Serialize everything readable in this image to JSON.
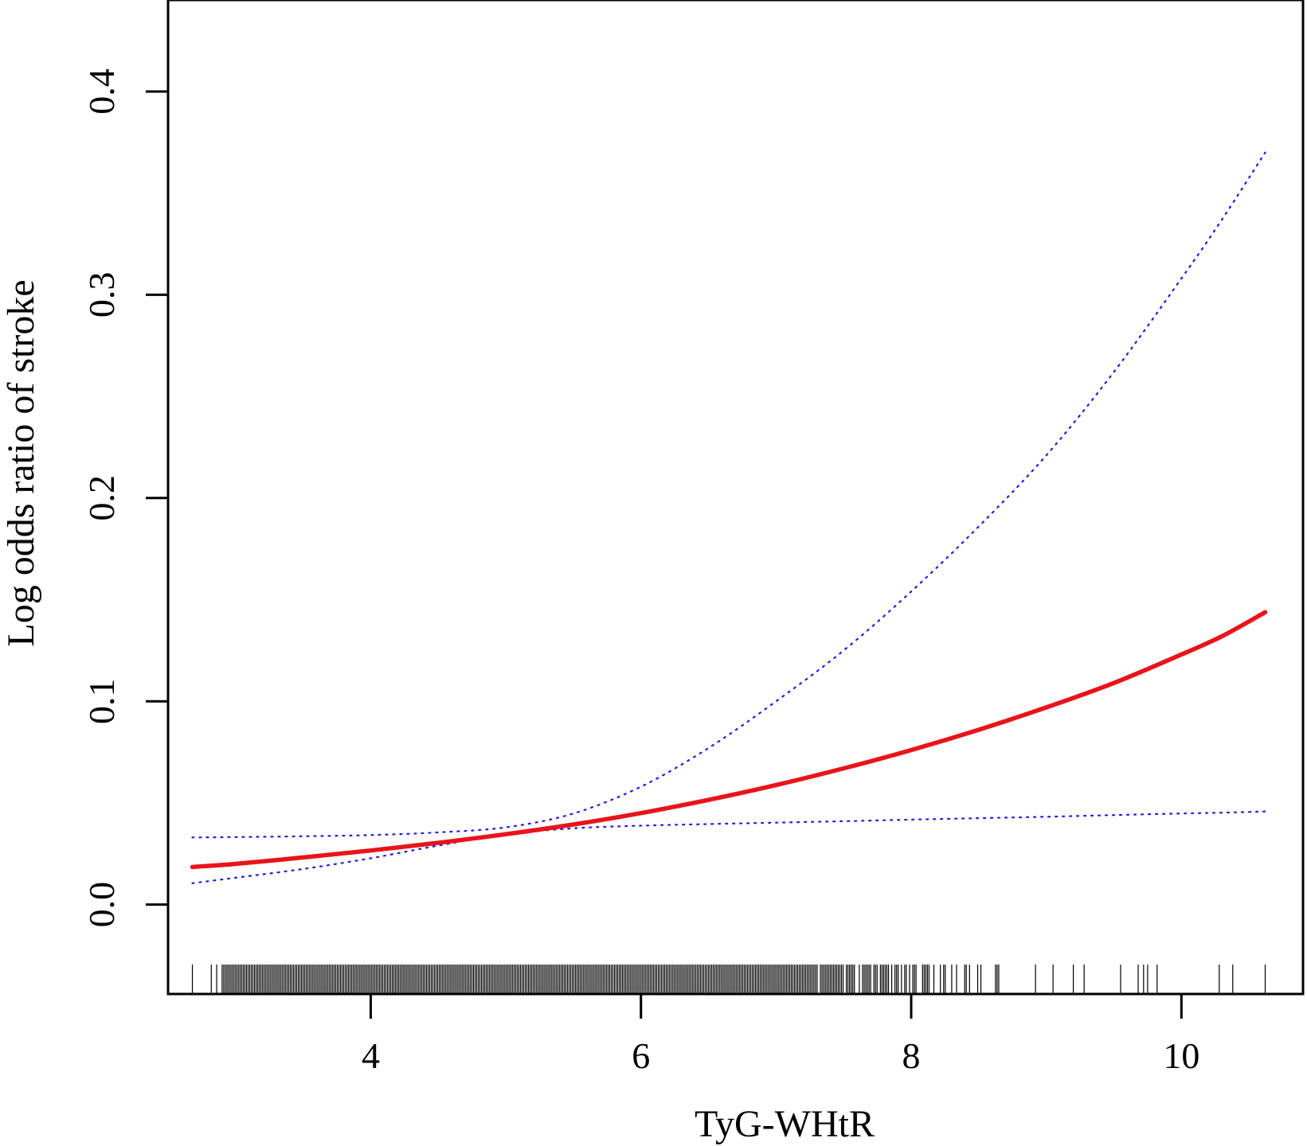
{
  "chart_data": {
    "type": "line",
    "title": "",
    "xlabel": "TyG-WHtR",
    "ylabel": "Log odds ratio of stroke",
    "xlim": [
      2.5,
      10.9
    ],
    "ylim": [
      -0.044,
      0.445
    ],
    "x_ticks": [
      4,
      6,
      8,
      10
    ],
    "x_tick_labels": [
      "4",
      "6",
      "8",
      "10"
    ],
    "y_ticks": [
      0.0,
      0.1,
      0.2,
      0.3,
      0.4
    ],
    "y_tick_labels": [
      "0.0",
      "0.1",
      "0.2",
      "0.3",
      "0.4"
    ],
    "grid": false,
    "legend": "none",
    "colors": {
      "estimate": "#e8141a",
      "ci": "#1a1ae6",
      "axis": "#000000",
      "rug": "#000000"
    },
    "x": [
      2.68,
      3.0,
      3.5,
      4.0,
      4.5,
      5.0,
      5.5,
      6.0,
      6.5,
      7.0,
      7.5,
      8.0,
      8.5,
      9.0,
      9.5,
      10.0,
      10.3,
      10.62
    ],
    "series": [
      {
        "role": "estimate",
        "style": "solid",
        "values": [
          0.0185,
          0.02,
          0.0232,
          0.0266,
          0.0304,
          0.0346,
          0.0394,
          0.045,
          0.0515,
          0.0588,
          0.067,
          0.076,
          0.086,
          0.097,
          0.109,
          0.123,
          0.132,
          0.1438
        ]
      },
      {
        "role": "ci-upper",
        "style": "dotted",
        "values": [
          0.033,
          0.0332,
          0.0336,
          0.0342,
          0.0355,
          0.038,
          0.0448,
          0.058,
          0.077,
          0.1,
          0.125,
          0.154,
          0.186,
          0.221,
          0.262,
          0.308,
          0.337,
          0.37
        ]
      },
      {
        "role": "ci-lower",
        "style": "dotted",
        "values": [
          0.0105,
          0.0132,
          0.0175,
          0.0228,
          0.029,
          0.0345,
          0.0375,
          0.0388,
          0.0396,
          0.0403,
          0.041,
          0.0418,
          0.0425,
          0.0432,
          0.044,
          0.0448,
          0.0452,
          0.0458
        ]
      }
    ],
    "rug": {
      "dense_ranges": [
        [
          2.9,
          8.85
        ]
      ],
      "sparse_x": [
        2.68,
        2.82,
        2.86,
        8.92,
        9.05,
        9.2,
        9.28,
        9.55,
        9.68,
        9.72,
        9.75,
        9.82,
        10.28,
        10.38,
        10.62
      ]
    }
  }
}
